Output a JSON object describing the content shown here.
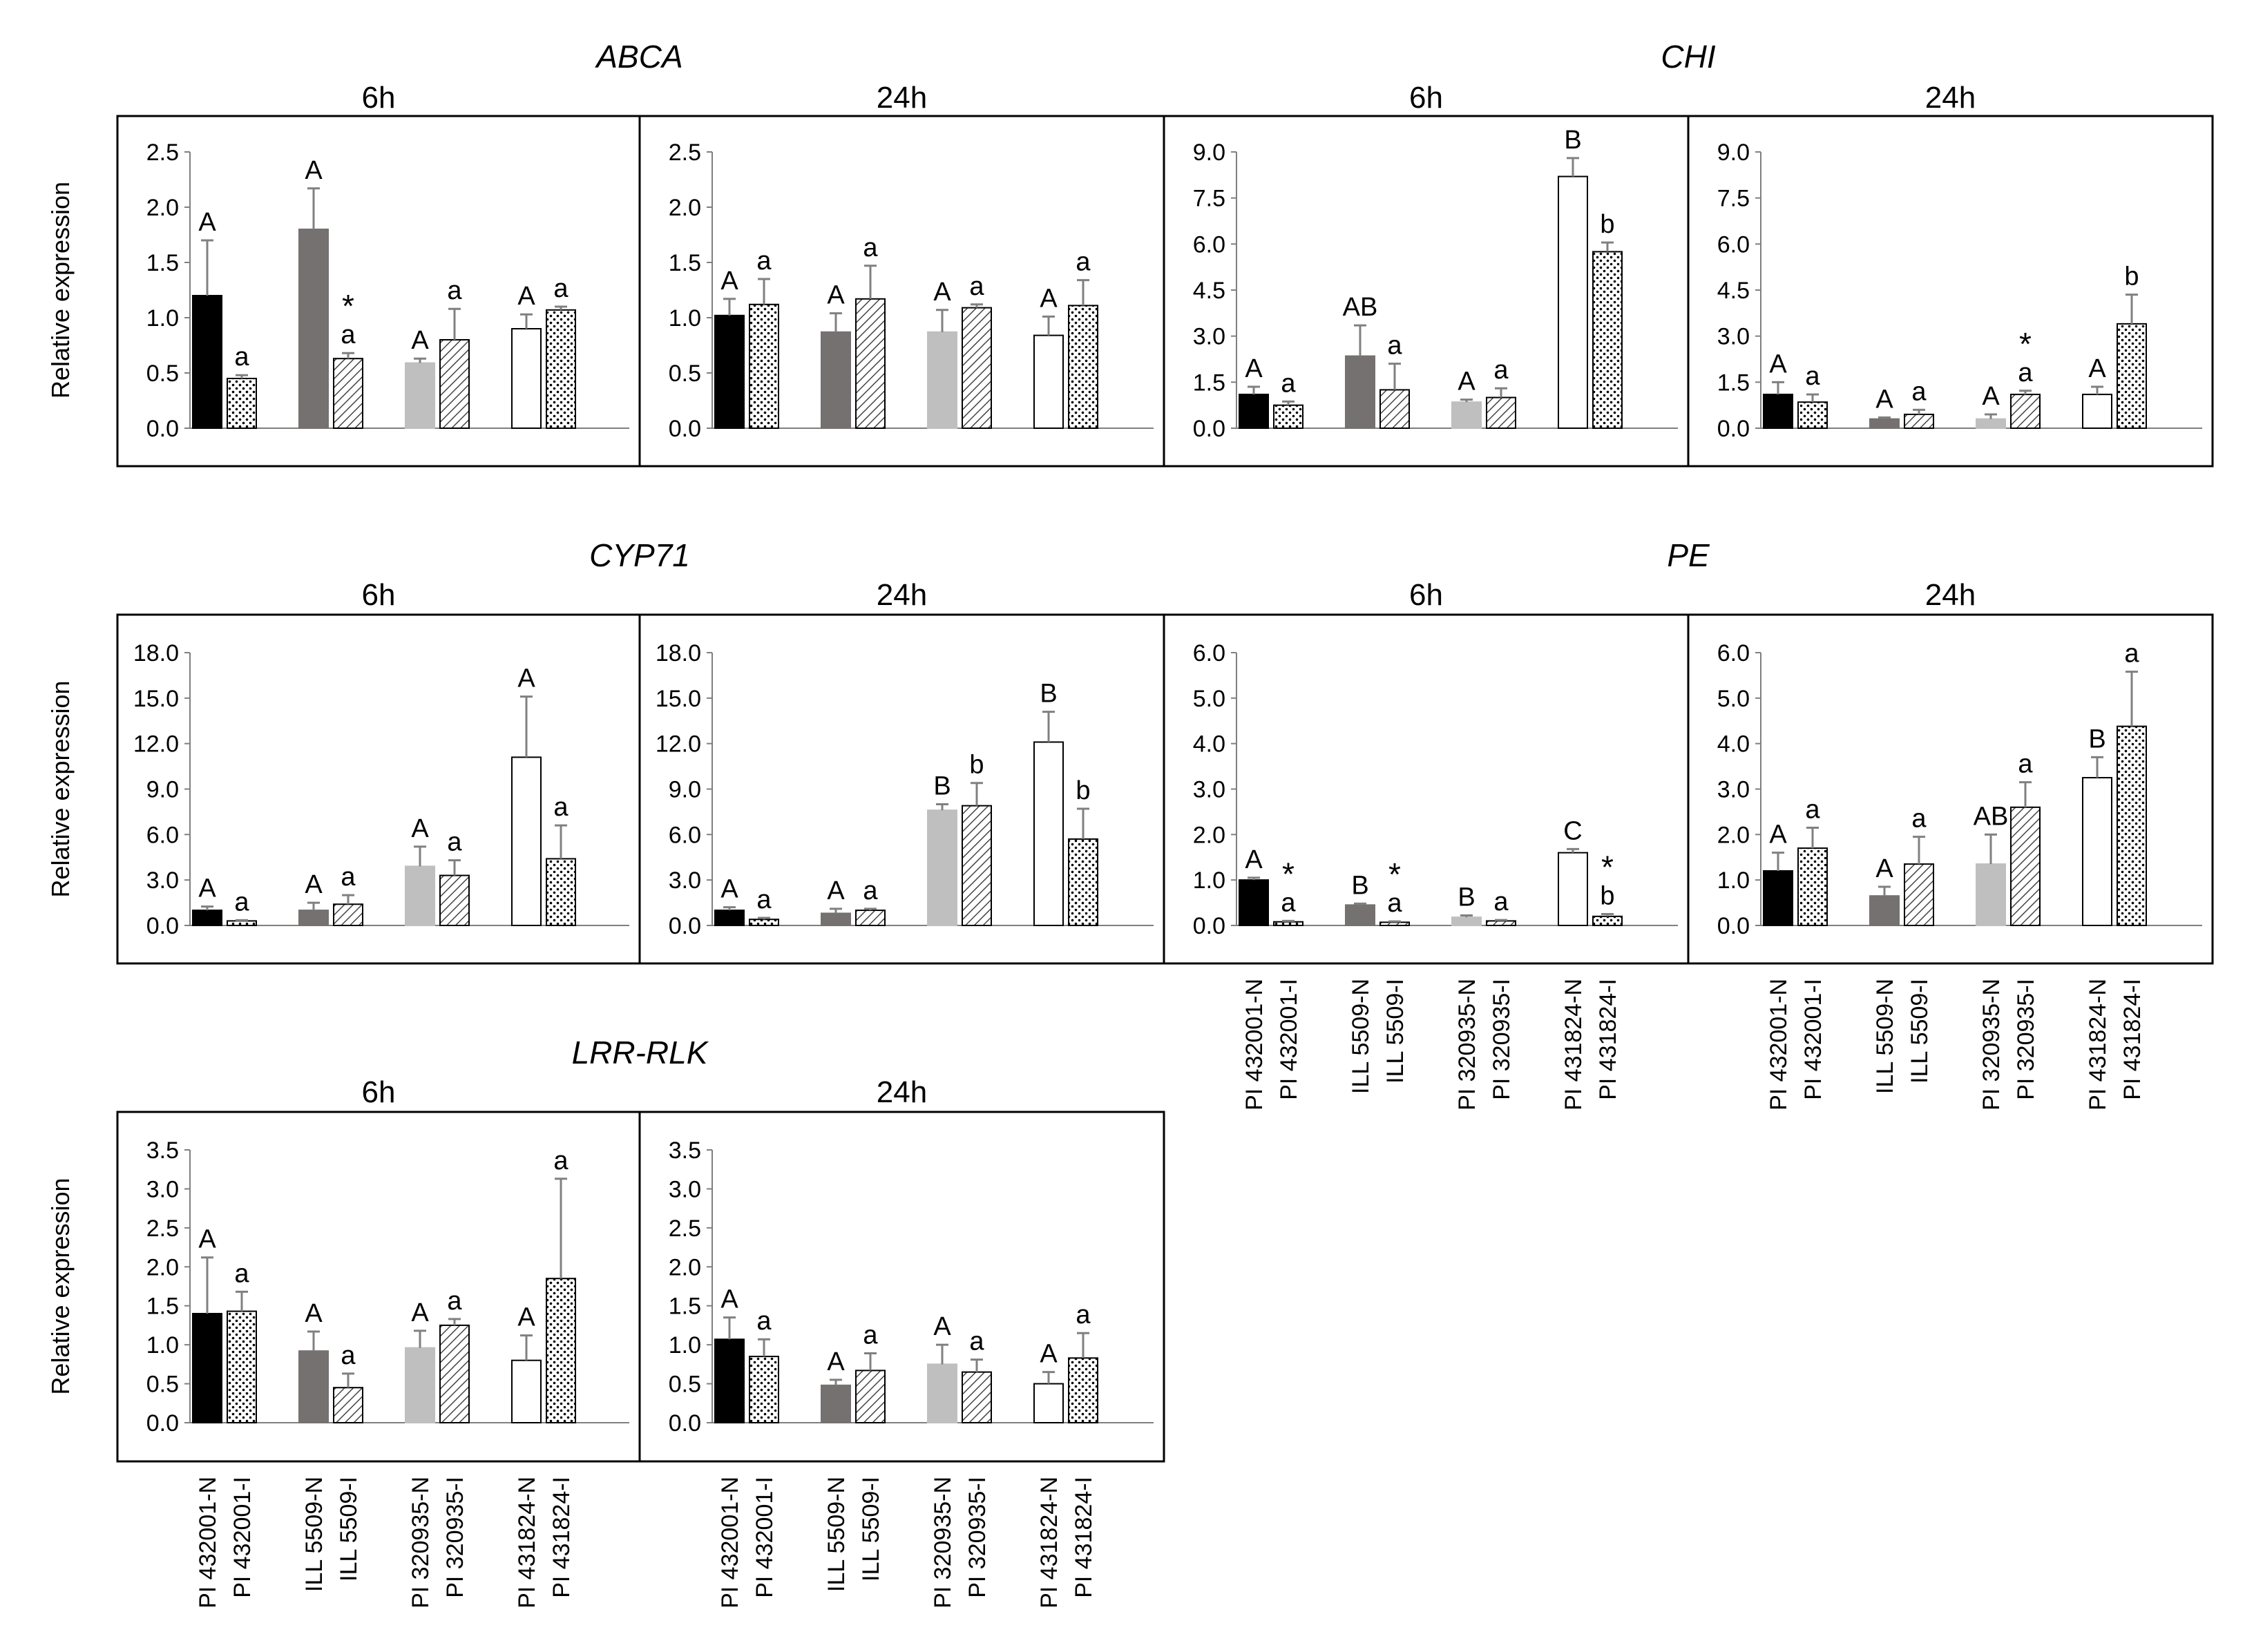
{
  "figure": {
    "y_axis_label": "Relative expression",
    "x_labels": [
      "PI 432001-N",
      "PI 432001-I",
      "ILL 5509-N",
      "ILL 5509-I",
      "PI 320935-N",
      "PI 320935-I",
      "PI 431824-N",
      "PI 431824-I"
    ],
    "bar_colors": [
      "#000000",
      "dots",
      "#767171",
      "hatch",
      "#bfbfbf",
      "hatch",
      "#ffffff",
      "dots"
    ],
    "errorbar_color": "#808080"
  },
  "chart_data": [
    {
      "type": "bar",
      "gene": "ABCA",
      "time": "6h",
      "ylim": [
        0,
        2.5
      ],
      "ticks": [
        "0.0",
        "0.5",
        "1.0",
        "1.5",
        "2.0",
        "2.5"
      ],
      "categories": [
        "PI 432001-N",
        "PI 432001-I",
        "ILL 5509-N",
        "ILL 5509-I",
        "PI 320935-N",
        "PI 320935-I",
        "PI 431824-N",
        "PI 431824-I"
      ],
      "values": [
        1.2,
        0.45,
        1.8,
        0.63,
        0.59,
        0.8,
        0.9,
        1.07
      ],
      "errors": [
        0.5,
        0.03,
        0.37,
        0.05,
        0.04,
        0.28,
        0.13,
        0.03
      ],
      "letters": [
        "A",
        "a",
        "A",
        "a",
        "A",
        "a",
        "A",
        "a"
      ],
      "asterisks": [
        false,
        false,
        false,
        true,
        false,
        false,
        false,
        false
      ]
    },
    {
      "type": "bar",
      "gene": "ABCA",
      "time": "24h",
      "ylim": [
        0,
        2.5
      ],
      "ticks": [
        "0.0",
        "0.5",
        "1.0",
        "1.5",
        "2.0",
        "2.5"
      ],
      "categories": [
        "PI 432001-N",
        "PI 432001-I",
        "ILL 5509-N",
        "ILL 5509-I",
        "PI 320935-N",
        "PI 320935-I",
        "PI 431824-N",
        "PI 431824-I"
      ],
      "values": [
        1.02,
        1.12,
        0.87,
        1.17,
        0.87,
        1.09,
        0.84,
        1.11
      ],
      "errors": [
        0.15,
        0.23,
        0.17,
        0.3,
        0.2,
        0.03,
        0.17,
        0.23
      ],
      "letters": [
        "A",
        "a",
        "A",
        "a",
        "A",
        "a",
        "A",
        "a"
      ],
      "asterisks": [
        false,
        false,
        false,
        false,
        false,
        false,
        false,
        false
      ]
    },
    {
      "type": "bar",
      "gene": "CHI",
      "time": "6h",
      "ylim": [
        0,
        9
      ],
      "ticks": [
        "0.0",
        "1.5",
        "3.0",
        "4.5",
        "6.0",
        "7.5",
        "9.0"
      ],
      "categories": [
        "PI 432001-N",
        "PI 432001-I",
        "ILL 5509-N",
        "ILL 5509-I",
        "PI 320935-N",
        "PI 320935-I",
        "PI 431824-N",
        "PI 431824-I"
      ],
      "values": [
        1.1,
        0.75,
        2.35,
        1.25,
        0.85,
        1.0,
        8.2,
        5.75
      ],
      "errors": [
        0.25,
        0.12,
        1.0,
        0.85,
        0.08,
        0.3,
        0.6,
        0.3
      ],
      "letters": [
        "A",
        "a",
        "AB",
        "a",
        "A",
        "a",
        "B",
        "b"
      ],
      "asterisks": [
        false,
        false,
        false,
        false,
        false,
        false,
        false,
        false
      ]
    },
    {
      "type": "bar",
      "gene": "CHI",
      "time": "24h",
      "ylim": [
        0,
        9
      ],
      "ticks": [
        "0.0",
        "1.5",
        "3.0",
        "4.5",
        "6.0",
        "7.5",
        "9.0"
      ],
      "categories": [
        "PI 432001-N",
        "PI 432001-I",
        "ILL 5509-N",
        "ILL 5509-I",
        "PI 320935-N",
        "PI 320935-I",
        "PI 431824-N",
        "PI 431824-I"
      ],
      "values": [
        1.1,
        0.85,
        0.3,
        0.45,
        0.3,
        1.1,
        1.1,
        3.4
      ],
      "errors": [
        0.4,
        0.25,
        0.05,
        0.15,
        0.15,
        0.12,
        0.25,
        0.95
      ],
      "letters": [
        "A",
        "a",
        "A",
        "a",
        "A",
        "a",
        "A",
        "b"
      ],
      "asterisks": [
        false,
        false,
        false,
        false,
        false,
        true,
        false,
        false
      ]
    },
    {
      "type": "bar",
      "gene": "CYP71",
      "time": "6h",
      "ylim": [
        0,
        18
      ],
      "ticks": [
        "0.0",
        "3.0",
        "6.0",
        "9.0",
        "12.0",
        "15.0",
        "18.0"
      ],
      "categories": [
        "PI 432001-N",
        "PI 432001-I",
        "ILL 5509-N",
        "ILL 5509-I",
        "PI 320935-N",
        "PI 320935-I",
        "PI 431824-N",
        "PI 431824-I"
      ],
      "values": [
        1.0,
        0.3,
        1.0,
        1.4,
        3.9,
        3.3,
        11.1,
        4.4
      ],
      "errors": [
        0.25,
        0.05,
        0.5,
        0.6,
        1.3,
        1.0,
        4.0,
        2.2
      ],
      "letters": [
        "A",
        "a",
        "A",
        "a",
        "A",
        "a",
        "A",
        "a"
      ],
      "asterisks": [
        false,
        false,
        false,
        false,
        false,
        false,
        false,
        false
      ]
    },
    {
      "type": "bar",
      "gene": "CYP71",
      "time": "24h",
      "ylim": [
        0,
        18
      ],
      "ticks": [
        "0.0",
        "3.0",
        "6.0",
        "9.0",
        "12.0",
        "15.0",
        "18.0"
      ],
      "categories": [
        "PI 432001-N",
        "PI 432001-I",
        "ILL 5509-N",
        "ILL 5509-I",
        "PI 320935-N",
        "PI 320935-I",
        "PI 431824-N",
        "PI 431824-I"
      ],
      "values": [
        1.0,
        0.4,
        0.8,
        1.0,
        7.6,
        7.9,
        12.1,
        5.7
      ],
      "errors": [
        0.2,
        0.1,
        0.3,
        0.1,
        0.4,
        1.5,
        2.0,
        2.0
      ],
      "letters": [
        "A",
        "a",
        "A",
        "a",
        "B",
        "b",
        "B",
        "b"
      ],
      "asterisks": [
        false,
        false,
        false,
        false,
        false,
        false,
        false,
        false
      ]
    },
    {
      "type": "bar",
      "gene": "PE",
      "time": "6h",
      "ylim": [
        0,
        6
      ],
      "ticks": [
        "0.0",
        "1.0",
        "2.0",
        "3.0",
        "4.0",
        "5.0",
        "6.0"
      ],
      "categories": [
        "PI 432001-N",
        "PI 432001-I",
        "ILL 5509-N",
        "ILL 5509-I",
        "PI 320935-N",
        "PI 320935-I",
        "PI 431824-N",
        "PI 431824-I"
      ],
      "values": [
        1.0,
        0.08,
        0.45,
        0.07,
        0.18,
        0.1,
        1.6,
        0.2
      ],
      "errors": [
        0.05,
        0.02,
        0.03,
        0.02,
        0.04,
        0.02,
        0.08,
        0.05
      ],
      "letters": [
        "A",
        "a",
        "B",
        "a",
        "B",
        "a",
        "C",
        "b"
      ],
      "asterisks": [
        false,
        true,
        false,
        true,
        false,
        false,
        false,
        true
      ]
    },
    {
      "type": "bar",
      "gene": "PE",
      "time": "24h",
      "ylim": [
        0,
        6
      ],
      "ticks": [
        "0.0",
        "1.0",
        "2.0",
        "3.0",
        "4.0",
        "5.0",
        "6.0"
      ],
      "categories": [
        "PI 432001-N",
        "PI 432001-I",
        "ILL 5509-N",
        "ILL 5509-I",
        "PI 320935-N",
        "PI 320935-I",
        "PI 431824-N",
        "PI 431824-I"
      ],
      "values": [
        1.2,
        1.7,
        0.65,
        1.35,
        1.35,
        2.6,
        3.25,
        4.38
      ],
      "errors": [
        0.4,
        0.45,
        0.2,
        0.6,
        0.65,
        0.55,
        0.45,
        1.2
      ],
      "letters": [
        "A",
        "a",
        "A",
        "a",
        "AB",
        "a",
        "B",
        "a"
      ],
      "asterisks": [
        false,
        false,
        false,
        false,
        false,
        false,
        false,
        false
      ]
    },
    {
      "type": "bar",
      "gene": "LRR-RLK",
      "time": "6h",
      "ylim": [
        0,
        3.5
      ],
      "ticks": [
        "0.0",
        "0.5",
        "1.0",
        "1.5",
        "2.0",
        "2.5",
        "3.0",
        "3.5"
      ],
      "categories": [
        "PI 432001-N",
        "PI 432001-I",
        "ILL 5509-N",
        "ILL 5509-I",
        "PI 320935-N",
        "PI 320935-I",
        "PI 431824-N",
        "PI 431824-I"
      ],
      "values": [
        1.4,
        1.43,
        0.92,
        0.45,
        0.96,
        1.25,
        0.8,
        1.85
      ],
      "errors": [
        0.72,
        0.25,
        0.25,
        0.18,
        0.22,
        0.08,
        0.32,
        1.28
      ],
      "letters": [
        "A",
        "a",
        "A",
        "a",
        "A",
        "a",
        "A",
        "a"
      ],
      "asterisks": [
        false,
        false,
        false,
        false,
        false,
        false,
        false,
        false
      ]
    },
    {
      "type": "bar",
      "gene": "LRR-RLK",
      "time": "24h",
      "ylim": [
        0,
        3.5
      ],
      "ticks": [
        "0.0",
        "0.5",
        "1.0",
        "1.5",
        "2.0",
        "2.5",
        "3.0",
        "3.5"
      ],
      "categories": [
        "PI 432001-N",
        "PI 432001-I",
        "ILL 5509-N",
        "ILL 5509-I",
        "PI 320935-N",
        "PI 320935-I",
        "PI 431824-N",
        "PI 431824-I"
      ],
      "values": [
        1.07,
        0.85,
        0.48,
        0.67,
        0.75,
        0.65,
        0.5,
        0.83
      ],
      "errors": [
        0.28,
        0.22,
        0.07,
        0.22,
        0.25,
        0.16,
        0.15,
        0.32
      ],
      "letters": [
        "A",
        "a",
        "A",
        "a",
        "A",
        "a",
        "A",
        "a"
      ],
      "asterisks": [
        false,
        false,
        false,
        false,
        false,
        false,
        false,
        false
      ]
    }
  ]
}
